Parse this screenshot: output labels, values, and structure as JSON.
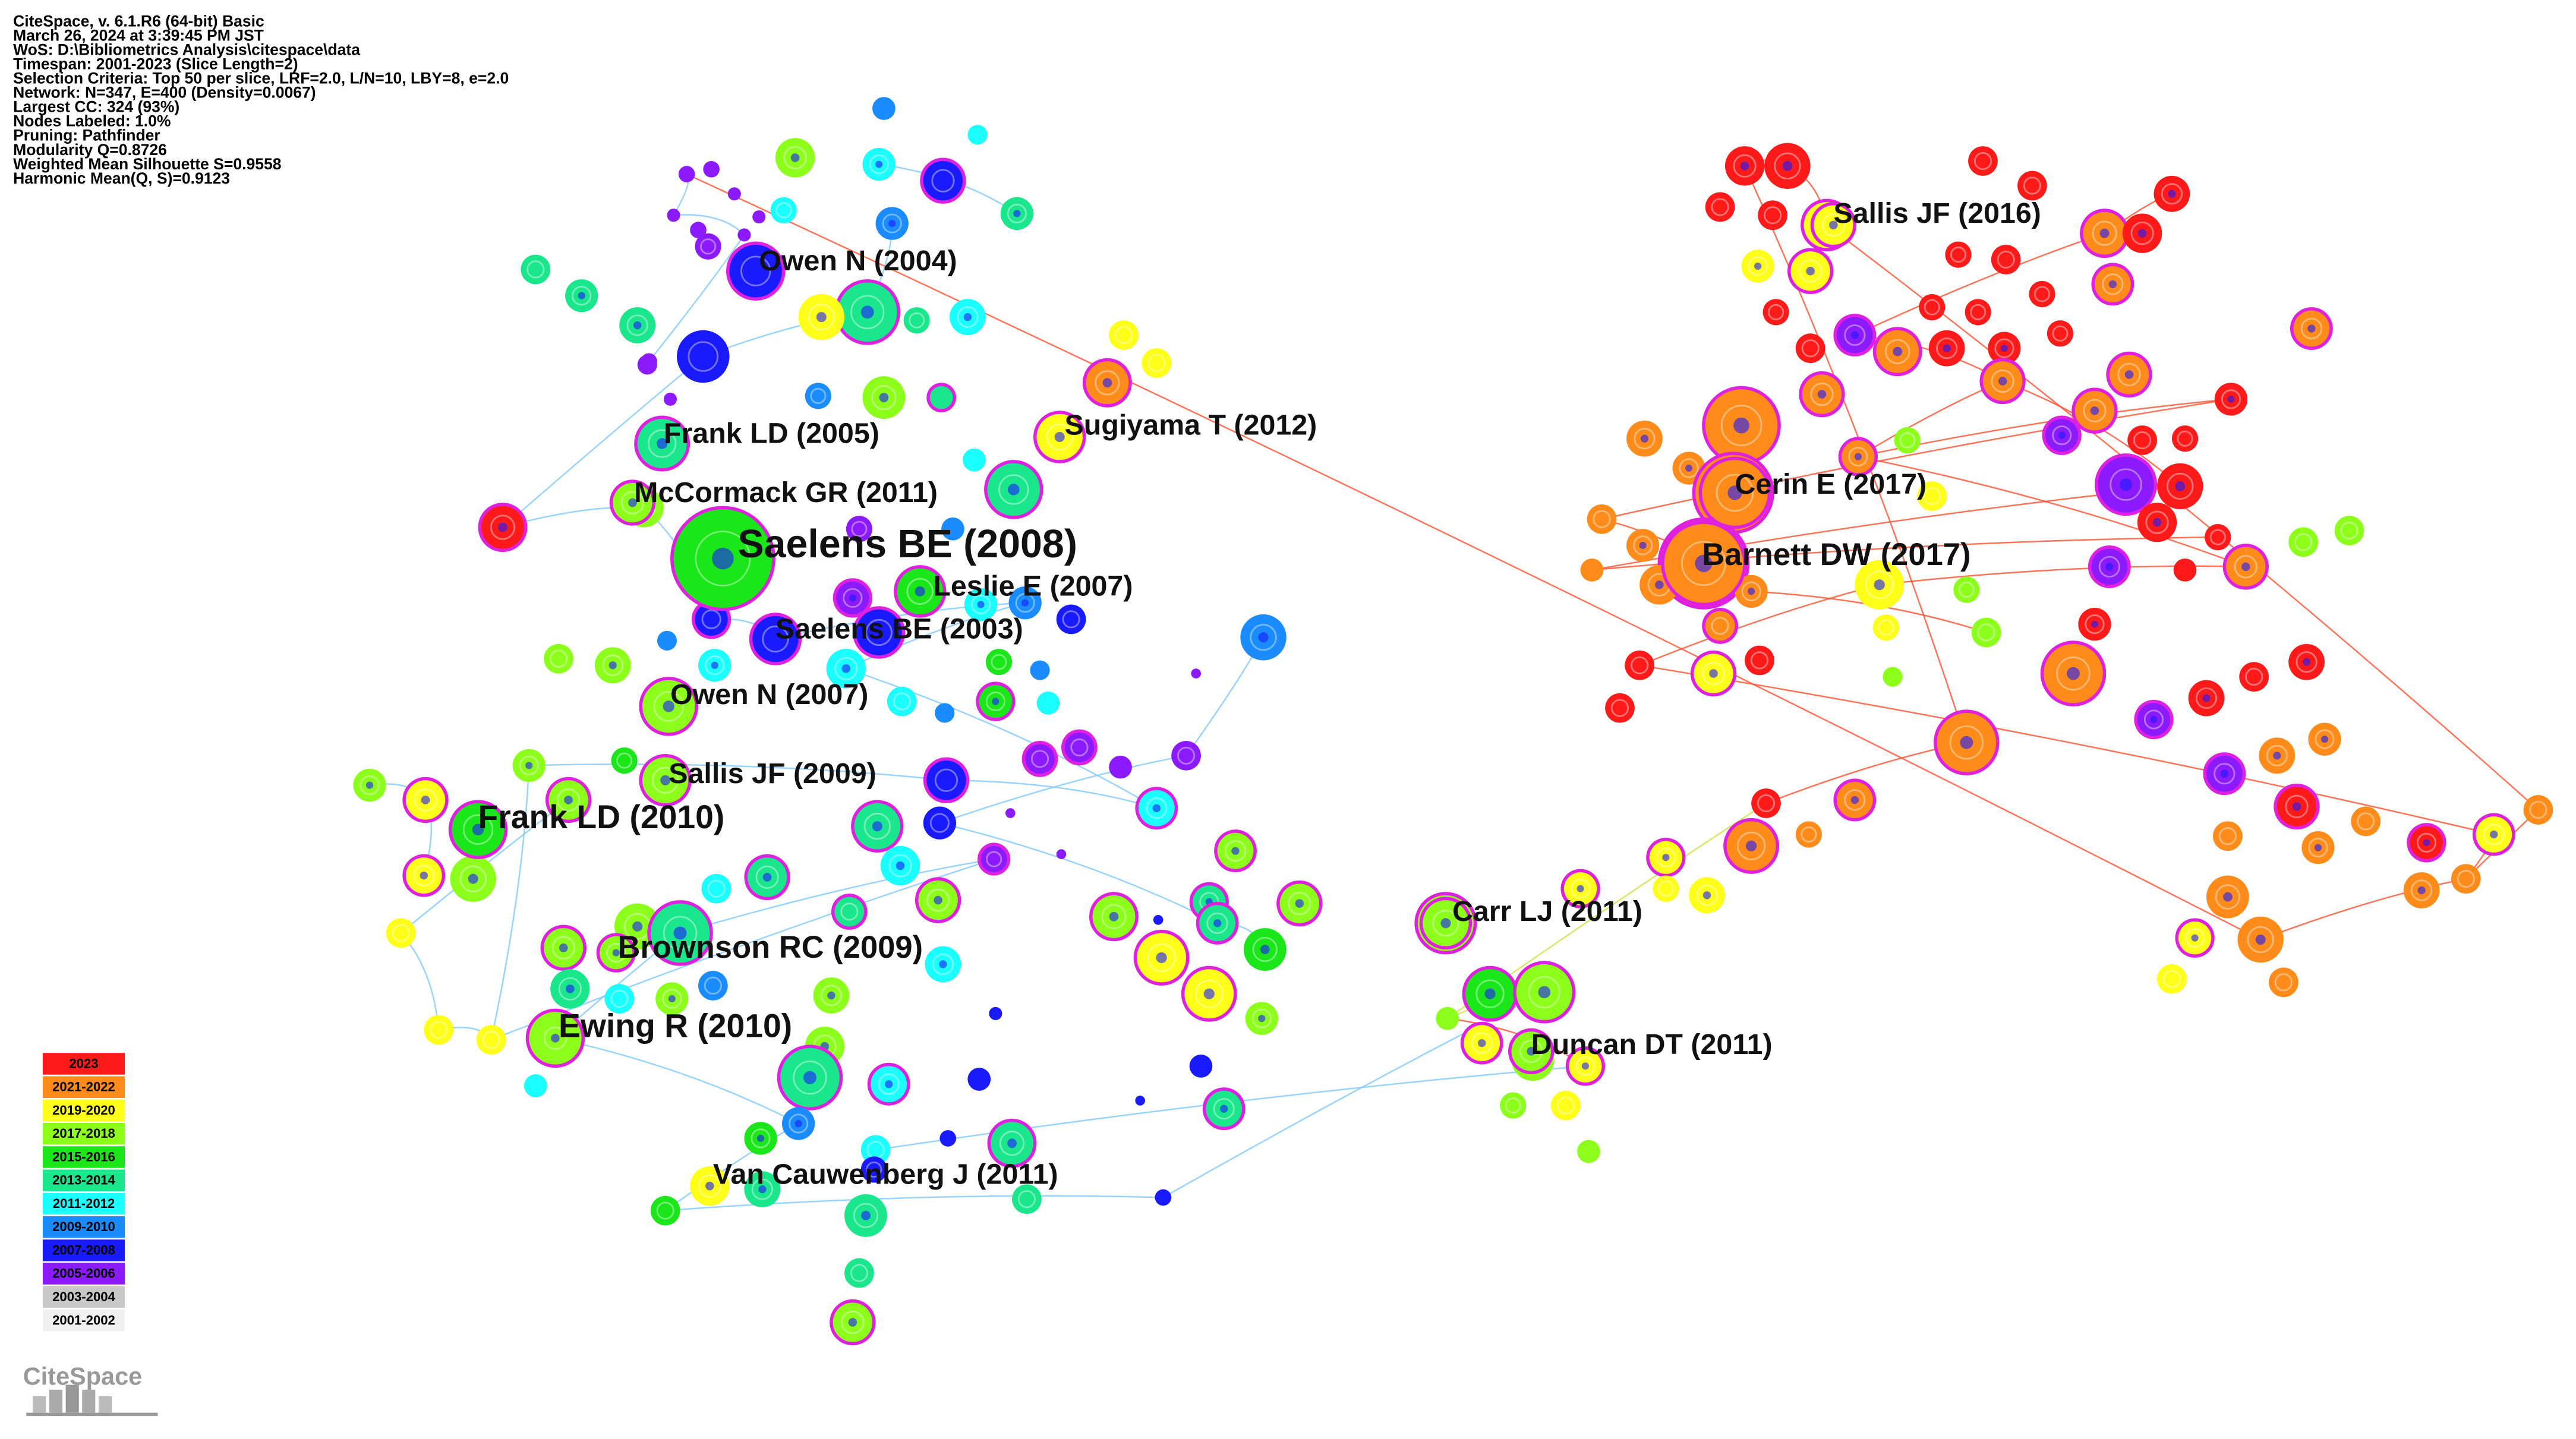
{
  "header": {
    "lines": [
      "CiteSpace, v. 6.1.R6 (64-bit) Basic",
      "March 26, 2024 at 3:39:45 PM JST",
      "WoS: D:\\Bibliometrics Analysis\\citespace\\data",
      "Timespan: 2001-2023 (Slice Length=2)",
      "Selection Criteria: Top 50 per slice, LRF=2.0, L/N=10, LBY=8, e=2.0",
      "Network: N=347, E=400 (Density=0.0067)",
      "Largest CC: 324 (93%)",
      "Nodes Labeled: 1.0%",
      "Pruning: Pathfinder",
      "Modularity Q=0.8726",
      "Weighted Mean Silhouette S=0.9558",
      "Harmonic Mean(Q, S)=0.9123"
    ]
  },
  "nodes": [
    {
      "label": "Owen N (2004)"
    },
    {
      "label": "Frank LD (2005)"
    },
    {
      "label": "Sugiyama T (2012)"
    },
    {
      "label": "McCormack GR (2011)"
    },
    {
      "label": "Saelens BE (2008)"
    },
    {
      "label": "Leslie E (2007)"
    },
    {
      "label": "Saelens BE (2003)"
    },
    {
      "label": "Owen N (2007)"
    },
    {
      "label": "Sallis JF (2009)"
    },
    {
      "label": "Frank LD (2010)"
    },
    {
      "label": "Brownson RC (2009)"
    },
    {
      "label": "Ewing R (2010)"
    },
    {
      "label": "Van Cauwenberg J (2011)"
    },
    {
      "label": "Sallis JF (2016)"
    },
    {
      "label": "Cerin E (2017)"
    },
    {
      "label": "Barnett DW (2017)"
    },
    {
      "label": "Carr LJ (2011)"
    },
    {
      "label": "Duncan DT (2011)"
    }
  ],
  "legend": {
    "items": [
      {
        "label": "2023",
        "color": "#ff1a1a"
      },
      {
        "label": "2021-2022",
        "color": "#ff8c1a"
      },
      {
        "label": "2019-2020",
        "color": "#ffff1a"
      },
      {
        "label": "2017-2018",
        "color": "#8cff1a"
      },
      {
        "label": "2015-2016",
        "color": "#1ae61a"
      },
      {
        "label": "2013-2014",
        "color": "#1ae68c"
      },
      {
        "label": "2011-2012",
        "color": "#1affff"
      },
      {
        "label": "2009-2010",
        "color": "#1a8cff"
      },
      {
        "label": "2007-2008",
        "color": "#1a1aff"
      },
      {
        "label": "2005-2006",
        "color": "#8c1aff"
      },
      {
        "label": "2003-2004",
        "color": "#c8c8c8"
      },
      {
        "label": "2001-2002",
        "color": "#f0f0f0"
      }
    ]
  },
  "logo": "CiteSpace"
}
